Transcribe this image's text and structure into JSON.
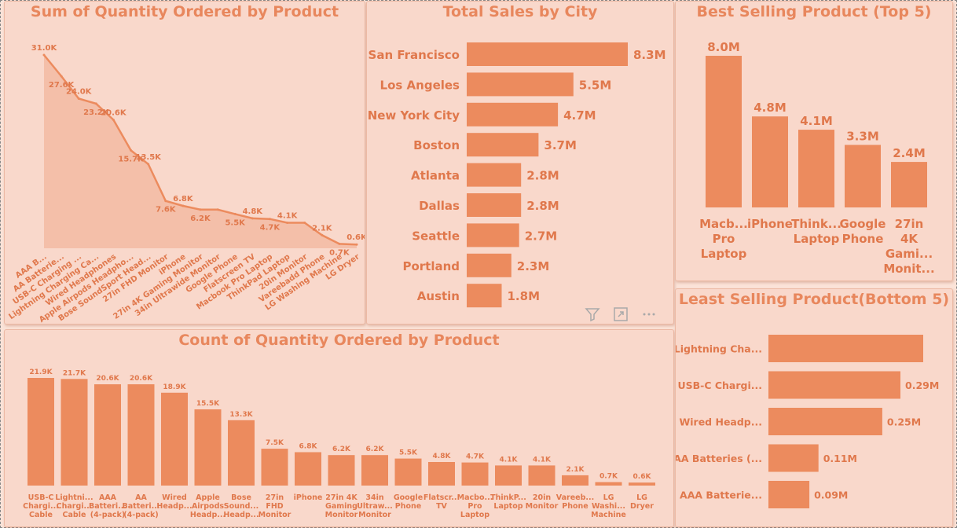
{
  "colors": {
    "bar": "#ec8b5e",
    "area": "#f2b79e",
    "label": "#e0784c",
    "title": "#e8875d",
    "panel": "#f9d8cb"
  },
  "panels": {
    "sum_title": "Sum of Quantity Ordered by Product",
    "city_title": "Total Sales by City",
    "best_title": "Best Selling Product (Top 5)",
    "count_title": "Count of Quantity Ordered by Product",
    "least_title": "Least Selling Product(Bottom 5)"
  },
  "visual_actions": [
    "filter-icon",
    "focus-mode-icon",
    "more-options-icon"
  ],
  "chart_data": [
    {
      "id": "sum",
      "type": "area",
      "title": "Sum of Quantity Ordered by Product",
      "categories": [
        "AAA B...",
        "AA Batterie...",
        "USB-C Charging ...",
        "Lightning Charging Ca...",
        "Wired Headphones",
        "Apple Airpods Headpho...",
        "Bose SoundSport Head...",
        "27in FHD Monitor",
        "iPhone",
        "27in 4K Gaming Monitor",
        "34in Ultrawide Monitor",
        "Google Phone",
        "Flatscreen TV",
        "Macbook Pro Laptop",
        "ThinkPad Laptop",
        "20in Monitor",
        "Vareebadd Phone",
        "LG Washing Machine",
        "LG Dryer"
      ],
      "values": [
        31.0,
        27.6,
        24.0,
        23.2,
        20.6,
        15.7,
        13.5,
        7.6,
        6.8,
        6.2,
        6.2,
        5.5,
        4.8,
        4.7,
        4.1,
        4.1,
        2.1,
        0.7,
        0.6
      ],
      "labels": [
        "31.0K",
        "27.6K",
        "24.0K",
        "23.2K",
        "20.6K",
        "15.7K",
        "13.5K",
        "7.6K",
        "6.8K",
        "6.2K",
        "",
        "5.5K",
        "4.8K",
        "4.7K",
        "4.1K",
        "",
        "2.1K",
        "0.7K",
        "0.6K"
      ],
      "ylim": [
        0,
        31.0
      ]
    },
    {
      "id": "city",
      "type": "bar",
      "orientation": "horizontal",
      "title": "Total Sales by City",
      "categories": [
        "San Francisco",
        "Los Angeles",
        "New York City",
        "Boston",
        "Atlanta",
        "Dallas",
        "Seattle",
        "Portland",
        "Austin"
      ],
      "values": [
        8.3,
        5.5,
        4.7,
        3.7,
        2.8,
        2.8,
        2.7,
        2.3,
        1.8
      ],
      "labels": [
        "8.3M",
        "5.5M",
        "4.7M",
        "3.7M",
        "2.8M",
        "2.8M",
        "2.7M",
        "2.3M",
        "1.8M"
      ]
    },
    {
      "id": "best",
      "type": "bar",
      "title": "Best Selling Product (Top 5)",
      "categories": [
        [
          "Macb...",
          "Pro",
          "Laptop"
        ],
        [
          "iPhone"
        ],
        [
          "Think...",
          "Laptop"
        ],
        [
          "Google",
          "Phone"
        ],
        [
          "27in",
          "4K",
          "Gami...",
          "Monit..."
        ]
      ],
      "values": [
        8.0,
        4.8,
        4.1,
        3.3,
        2.4
      ],
      "labels": [
        "8.0M",
        "4.8M",
        "4.1M",
        "3.3M",
        "2.4M"
      ]
    },
    {
      "id": "count",
      "type": "bar",
      "title": "Count of Quantity Ordered by Product",
      "categories": [
        [
          "USB-C",
          "Chargi...",
          "Cable"
        ],
        [
          "Lightni...",
          "Chargi...",
          "Cable"
        ],
        [
          "AAA",
          "Batteri...",
          "(4-pack)"
        ],
        [
          "AA",
          "Batteri...",
          "(4-pack)"
        ],
        [
          "Wired",
          "Headp..."
        ],
        [
          "Apple",
          "Airpods",
          "Headp..."
        ],
        [
          "Bose",
          "Sound...",
          "Headp..."
        ],
        [
          "27in",
          "FHD",
          "Monitor"
        ],
        [
          "iPhone"
        ],
        [
          "27in 4K",
          "Gaming",
          "Monitor"
        ],
        [
          "34in",
          "Ultraw...",
          "Monitor"
        ],
        [
          "Google",
          "Phone"
        ],
        [
          "Flatscr...",
          "TV"
        ],
        [
          "Macbo...",
          "Pro",
          "Laptop"
        ],
        [
          "ThinkP...",
          "Laptop"
        ],
        [
          "20in",
          "Monitor"
        ],
        [
          "Vareeb...",
          "Phone"
        ],
        [
          "LG",
          "Washi...",
          "Machine"
        ],
        [
          "LG",
          "Dryer"
        ]
      ],
      "values": [
        21.9,
        21.7,
        20.6,
        20.6,
        18.9,
        15.5,
        13.3,
        7.5,
        6.8,
        6.2,
        6.2,
        5.5,
        4.8,
        4.7,
        4.1,
        4.1,
        2.1,
        0.7,
        0.6
      ],
      "labels": [
        "21.9K",
        "21.7K",
        "20.6K",
        "20.6K",
        "18.9K",
        "15.5K",
        "13.3K",
        "7.5K",
        "6.8K",
        "6.2K",
        "6.2K",
        "5.5K",
        "4.8K",
        "4.7K",
        "4.1K",
        "4.1K",
        "2.1K",
        "0.7K",
        "0.6K"
      ]
    },
    {
      "id": "least",
      "type": "bar",
      "orientation": "horizontal",
      "title": "Least Selling Product(Bottom 5)",
      "categories": [
        "Lightning Cha...",
        "USB-C Chargi...",
        "Wired Headp...",
        "AA Batteries (...",
        "AAA Batterie..."
      ],
      "values": [
        0.34,
        0.29,
        0.25,
        0.11,
        0.09
      ],
      "labels": [
        "",
        "0.29M",
        "0.25M",
        "0.11M",
        "0.09M"
      ]
    }
  ]
}
